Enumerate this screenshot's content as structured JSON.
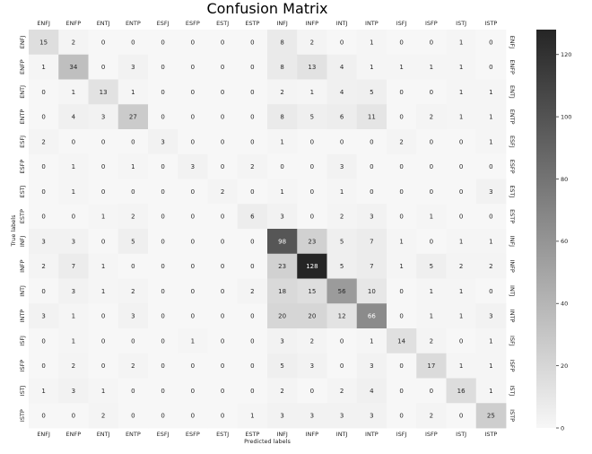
{
  "chart_data": {
    "type": "heatmap",
    "title": "Confusion Matrix",
    "xlabel": "Predicted labels",
    "ylabel": "True labels",
    "x_categories": [
      "ENFJ",
      "ENFP",
      "ENTJ",
      "ENTP",
      "ESFJ",
      "ESFP",
      "ESTJ",
      "ESTP",
      "INFJ",
      "INFP",
      "INTJ",
      "INTP",
      "ISFJ",
      "ISFP",
      "ISTJ",
      "ISTP"
    ],
    "y_categories": [
      "ENFJ",
      "ENFP",
      "ENTJ",
      "ENTP",
      "ESFJ",
      "ESFP",
      "ESTJ",
      "ESTP",
      "INFJ",
      "INFP",
      "INTJ",
      "INTP",
      "ISFJ",
      "ISFP",
      "ISTJ",
      "ISTP"
    ],
    "values": [
      [
        15,
        2,
        0,
        0,
        0,
        0,
        0,
        0,
        8,
        2,
        0,
        1,
        0,
        0,
        1,
        0
      ],
      [
        1,
        34,
        0,
        3,
        0,
        0,
        0,
        0,
        8,
        13,
        4,
        1,
        1,
        1,
        1,
        0
      ],
      [
        0,
        1,
        13,
        1,
        0,
        0,
        0,
        0,
        2,
        1,
        4,
        5,
        0,
        0,
        1,
        1
      ],
      [
        0,
        4,
        3,
        27,
        0,
        0,
        0,
        0,
        8,
        5,
        6,
        11,
        0,
        2,
        1,
        1
      ],
      [
        2,
        0,
        0,
        0,
        3,
        0,
        0,
        0,
        1,
        0,
        0,
        0,
        2,
        0,
        0,
        1
      ],
      [
        0,
        1,
        0,
        1,
        0,
        3,
        0,
        2,
        0,
        0,
        3,
        0,
        0,
        0,
        0,
        0
      ],
      [
        0,
        1,
        0,
        0,
        0,
        0,
        2,
        0,
        1,
        0,
        1,
        0,
        0,
        0,
        0,
        3
      ],
      [
        0,
        0,
        1,
        2,
        0,
        0,
        0,
        6,
        3,
        0,
        2,
        3,
        0,
        1,
        0,
        0
      ],
      [
        3,
        3,
        0,
        5,
        0,
        0,
        0,
        0,
        98,
        23,
        5,
        7,
        1,
        0,
        1,
        1
      ],
      [
        2,
        7,
        1,
        0,
        0,
        0,
        0,
        0,
        23,
        128,
        5,
        7,
        1,
        5,
        2,
        2
      ],
      [
        0,
        3,
        1,
        2,
        0,
        0,
        0,
        2,
        18,
        15,
        56,
        10,
        0,
        1,
        1,
        0
      ],
      [
        3,
        1,
        0,
        3,
        0,
        0,
        0,
        0,
        20,
        20,
        12,
        66,
        0,
        1,
        1,
        3
      ],
      [
        0,
        1,
        0,
        0,
        0,
        1,
        0,
        0,
        3,
        2,
        0,
        1,
        14,
        2,
        0,
        1
      ],
      [
        0,
        2,
        0,
        2,
        0,
        0,
        0,
        0,
        5,
        3,
        0,
        3,
        0,
        17,
        1,
        1
      ],
      [
        1,
        3,
        1,
        0,
        0,
        0,
        0,
        0,
        2,
        0,
        2,
        4,
        0,
        0,
        16,
        1
      ],
      [
        0,
        0,
        2,
        0,
        0,
        0,
        0,
        1,
        3,
        3,
        3,
        3,
        0,
        2,
        0,
        25
      ]
    ],
    "value_range": [
      0,
      128
    ],
    "colormap": "Greys",
    "colors": {
      "low": "#f7f7f7",
      "high": "#252525"
    },
    "colorbar": {
      "ticks": [
        0,
        20,
        40,
        60,
        80,
        100,
        120
      ],
      "placement": "right"
    },
    "grid": false
  }
}
